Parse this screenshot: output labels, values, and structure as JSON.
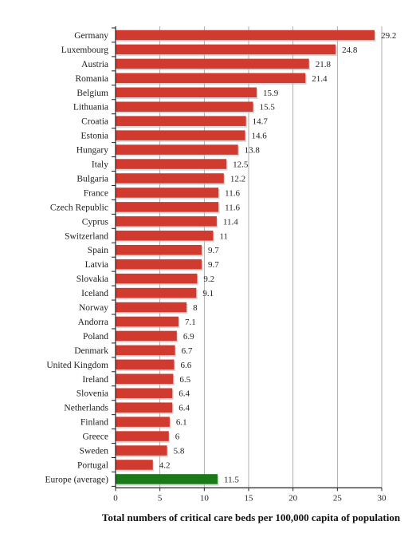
{
  "chart_data": {
    "type": "bar",
    "orientation": "horizontal",
    "title": "",
    "xlabel": "Total numbers of critical care beds per 100,000 capita of population",
    "ylabel": "",
    "xlim": [
      0,
      30
    ],
    "xticks": [
      0,
      5,
      10,
      15,
      20,
      25,
      30
    ],
    "grid": "vertical",
    "bar_color": "#d13a2e",
    "highlight_color": "#1a7a1a",
    "highlight_category": "Europe (average)",
    "categories": [
      "Germany",
      "Luxembourg",
      "Austria",
      "Romania",
      "Belgium",
      "Lithuania",
      "Croatia",
      "Estonia",
      "Hungary",
      "Italy",
      "Bulgaria",
      "France",
      "Czech Republic",
      "Cyprus",
      "Switzerland",
      "Spain",
      "Latvia",
      "Slovakia",
      "Iceland",
      "Norway",
      "Andorra",
      "Poland",
      "Denmark",
      "United Kingdom",
      "Ireland",
      "Slovenia",
      "Netherlands",
      "Finland",
      "Greece",
      "Sweden",
      "Portugal",
      "Europe (average)"
    ],
    "values": [
      29.2,
      24.8,
      21.8,
      21.4,
      15.9,
      15.5,
      14.7,
      14.6,
      13.8,
      12.5,
      12.2,
      11.6,
      11.6,
      11.4,
      11,
      9.7,
      9.7,
      9.2,
      9.1,
      8,
      7.1,
      6.9,
      6.7,
      6.6,
      6.5,
      6.4,
      6.4,
      6.1,
      6,
      5.8,
      4.2,
      11.5
    ],
    "value_labels": [
      "29.2",
      "24.8",
      "21.8",
      "21.4",
      "15.9",
      "15.5",
      "14.7",
      "14.6",
      "13.8",
      "12.5",
      "12.2",
      "11.6",
      "11.6",
      "11.4",
      "11",
      "9.7",
      "9.7",
      "9.2",
      "9.1",
      "8",
      "7.1",
      "6.9",
      "6.7",
      "6.6",
      "6.5",
      "6.4",
      "6.4",
      "6.1",
      "6",
      "5.8",
      "4.2",
      "11.5"
    ]
  }
}
